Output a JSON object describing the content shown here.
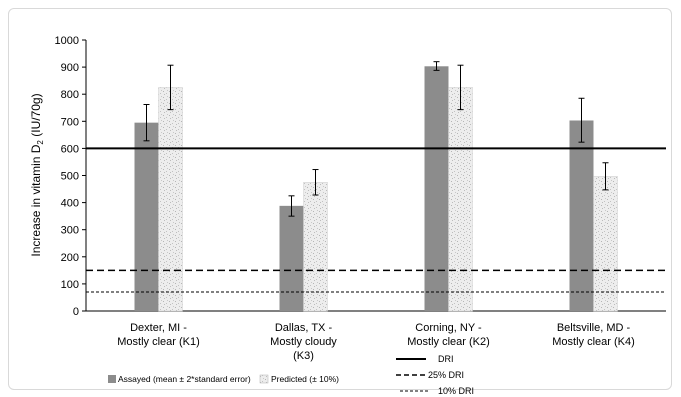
{
  "chart_data": {
    "type": "bar",
    "title": "",
    "ylabel": "Increase in vitamin D",
    "ylabel_subscript": "2",
    "ylabel_unit": "(IU/70g)",
    "xlabel": "",
    "ylim": [
      0,
      1000
    ],
    "yticks": [
      0,
      100,
      200,
      300,
      400,
      500,
      600,
      700,
      800,
      900,
      1000
    ],
    "grid": false,
    "legend_position": "bottom",
    "categories": [
      {
        "line1": "Dexter, MI -",
        "line2": "Mostly clear (K1)",
        "line3": ""
      },
      {
        "line1": "Dallas, TX -",
        "line2": "Mostly cloudy",
        "line3": "(K3)"
      },
      {
        "line1": "Corning, NY -",
        "line2": "Mostly clear (K2)",
        "line3": ""
      },
      {
        "line1": "Beltsville, MD -",
        "line2": "Mostly clear (K4)",
        "line3": ""
      }
    ],
    "series": [
      {
        "name": "Assayed (mean ± 2*standard error)",
        "color": "#8c8c8c",
        "values": [
          695,
          388,
          903,
          703
        ],
        "err_low": [
          628,
          350,
          888,
          623
        ],
        "err_high": [
          762,
          425,
          920,
          785
        ]
      },
      {
        "name": "Predicted (± 10%)",
        "color": "#ececec",
        "pattern": "speckled",
        "values": [
          825,
          475,
          825,
          497
        ],
        "err_low": [
          743,
          428,
          743,
          447
        ],
        "err_high": [
          907,
          522,
          907,
          547
        ]
      }
    ],
    "reference_lines": [
      {
        "name": "DRI",
        "value": 600,
        "style": "solid"
      },
      {
        "name": "25% DRI",
        "value": 150,
        "style": "dashed"
      },
      {
        "name": "10% DRI",
        "value": 70,
        "style": "dashed-fine"
      }
    ]
  }
}
